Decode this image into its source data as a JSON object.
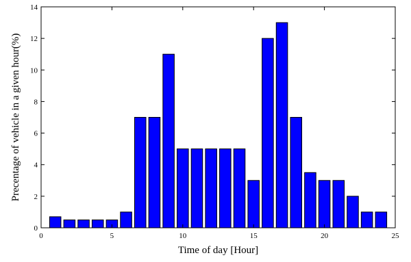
{
  "chart_data": {
    "type": "bar",
    "title": "",
    "xlabel": "Time of day [Hour]",
    "ylabel": "Precentage of vehicle in a given hour(%)",
    "x": [
      1,
      2,
      3,
      4,
      5,
      6,
      7,
      8,
      9,
      10,
      11,
      12,
      13,
      14,
      15,
      16,
      17,
      18,
      19,
      20,
      21,
      22,
      23,
      24
    ],
    "values": [
      0.7,
      0.5,
      0.5,
      0.5,
      0.5,
      1.0,
      7.0,
      7.0,
      11.0,
      5.0,
      5.0,
      5.0,
      5.0,
      5.0,
      3.0,
      12.0,
      13.0,
      7.0,
      3.5,
      3.0,
      3.0,
      2.0,
      1.0,
      1.0
    ],
    "xlim": [
      0,
      25
    ],
    "ylim": [
      0,
      14
    ],
    "xticks": [
      0,
      5,
      10,
      15,
      20,
      25
    ],
    "yticks": [
      0,
      2,
      4,
      6,
      8,
      10,
      12,
      14
    ],
    "grid": false,
    "bar_color": "#0000ff",
    "edge_color": "#000000"
  }
}
